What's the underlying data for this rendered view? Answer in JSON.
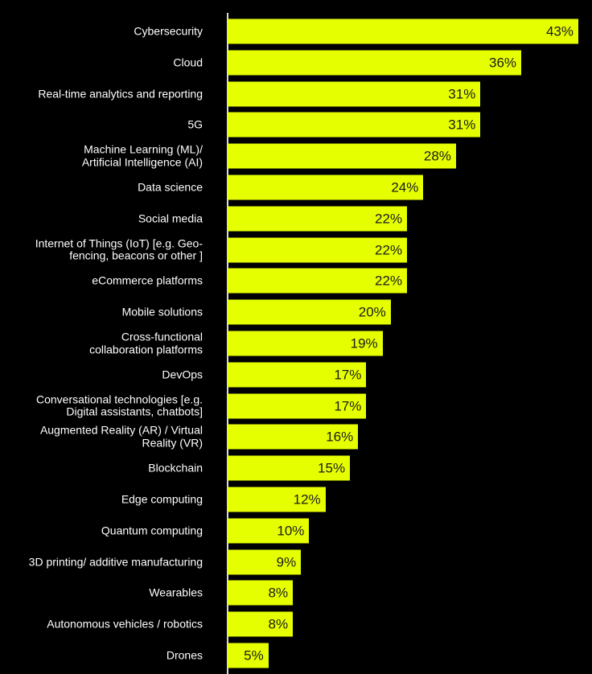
{
  "colors": {
    "background": "#000000",
    "bar": "#e6ff00",
    "text": "#ffffff",
    "value_text": "#1a1a1a",
    "axis": "#d9d9d9"
  },
  "chart_data": {
    "type": "bar",
    "orientation": "horizontal",
    "title": "",
    "xlabel": "",
    "ylabel": "",
    "xlim": [
      0,
      45
    ],
    "grid": false,
    "categories": [
      "Cybersecurity",
      "Cloud",
      "Real-time analytics and reporting",
      "5G",
      "Machine Learning (ML)/\nArtificial Intelligence (AI)",
      "Data science",
      "Social media",
      "Internet of Things (IoT) [e.g. Geo-\nfencing, beacons or other ]",
      "eCommerce platforms",
      "Mobile solutions",
      "Cross-functional\ncollaboration platforms",
      "DevOps",
      "Conversational technologies [e.g.\nDigital assistants, chatbots]",
      "Augmented Reality (AR) / Virtual\nReality (VR)",
      "Blockchain",
      "Edge computing",
      "Quantum computing",
      "3D printing/ additive manufacturing",
      "Wearables",
      "Autonomous vehicles / robotics",
      "Drones"
    ],
    "values": [
      43,
      36,
      31,
      31,
      28,
      24,
      22,
      22,
      22,
      20,
      19,
      17,
      17,
      16,
      15,
      12,
      10,
      9,
      8,
      8,
      5
    ],
    "value_labels": [
      "43%",
      "36%",
      "31%",
      "31%",
      "28%",
      "24%",
      "22%",
      "22%",
      "22%",
      "20%",
      "19%",
      "17%",
      "17%",
      "16%",
      "15%",
      "12%",
      "10%",
      "9%",
      "8%",
      "8%",
      "5%"
    ]
  }
}
